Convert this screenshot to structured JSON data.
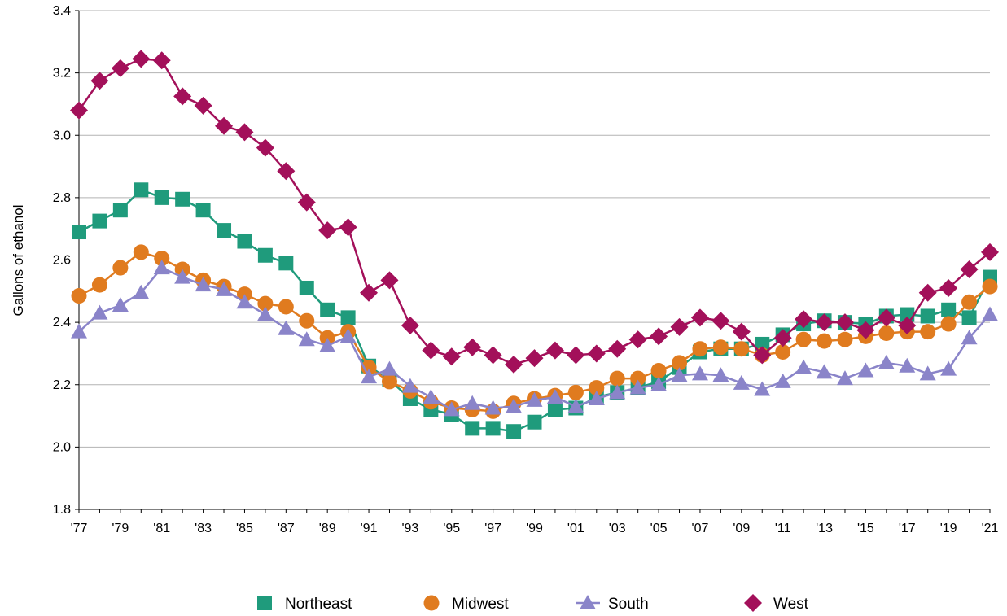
{
  "chart_data": {
    "type": "line",
    "title": "",
    "xlabel": "",
    "ylabel": "Gallons of ethanol",
    "ylim": [
      1.8,
      3.4
    ],
    "yticks": [
      "1.8",
      "2.0",
      "2.2",
      "2.4",
      "2.6",
      "2.8",
      "3.0",
      "3.2",
      "3.4"
    ],
    "xlim": [
      1977,
      2021
    ],
    "xticks": [
      "'77",
      "'79",
      "'81",
      "'83",
      "'85",
      "'87",
      "'89",
      "'91",
      "'93",
      "'95",
      "'97",
      "'99",
      "'01",
      "'03",
      "'05",
      "'07",
      "'09",
      "'11",
      "'13",
      "'15",
      "'17",
      "'19",
      "'21"
    ],
    "grid": "horizontal",
    "legend_position": "bottom",
    "x": [
      1977,
      1978,
      1979,
      1980,
      1981,
      1982,
      1983,
      1984,
      1985,
      1986,
      1987,
      1988,
      1989,
      1990,
      1991,
      1992,
      1993,
      1994,
      1995,
      1996,
      1997,
      1998,
      1999,
      2000,
      2001,
      2002,
      2003,
      2004,
      2005,
      2006,
      2007,
      2008,
      2009,
      2010,
      2011,
      2012,
      2013,
      2014,
      2015,
      2016,
      2017,
      2018,
      2019,
      2020,
      2021
    ],
    "series": [
      {
        "name": "Northeast",
        "color": "#1f9b7c",
        "marker": "square",
        "values": [
          2.69,
          2.725,
          2.76,
          2.825,
          2.8,
          2.795,
          2.76,
          2.695,
          2.66,
          2.615,
          2.59,
          2.51,
          2.44,
          2.415,
          2.26,
          2.215,
          2.155,
          2.12,
          2.105,
          2.06,
          2.06,
          2.05,
          2.08,
          2.12,
          2.125,
          2.16,
          2.175,
          2.19,
          2.21,
          2.255,
          2.305,
          2.315,
          2.315,
          2.33,
          2.36,
          2.395,
          2.405,
          2.4,
          2.395,
          2.42,
          2.425,
          2.42,
          2.44,
          2.415,
          2.545
        ]
      },
      {
        "name": "Midwest",
        "color": "#e07b1f",
        "marker": "circle",
        "values": [
          2.485,
          2.52,
          2.575,
          2.625,
          2.605,
          2.57,
          2.535,
          2.515,
          2.49,
          2.46,
          2.45,
          2.405,
          2.35,
          2.37,
          2.255,
          2.21,
          2.18,
          2.145,
          2.125,
          2.12,
          2.115,
          2.14,
          2.155,
          2.165,
          2.175,
          2.19,
          2.22,
          2.22,
          2.245,
          2.27,
          2.315,
          2.32,
          2.315,
          2.295,
          2.305,
          2.345,
          2.34,
          2.345,
          2.355,
          2.365,
          2.37,
          2.37,
          2.395,
          2.465,
          2.515
        ]
      },
      {
        "name": "South",
        "color": "#8a84c9",
        "marker": "triangle",
        "values": [
          2.37,
          2.43,
          2.455,
          2.495,
          2.575,
          2.545,
          2.52,
          2.505,
          2.465,
          2.425,
          2.38,
          2.345,
          2.325,
          2.355,
          2.225,
          2.25,
          2.195,
          2.16,
          2.12,
          2.14,
          2.125,
          2.13,
          2.15,
          2.16,
          2.13,
          2.155,
          2.175,
          2.19,
          2.2,
          2.23,
          2.235,
          2.23,
          2.205,
          2.185,
          2.21,
          2.255,
          2.24,
          2.22,
          2.245,
          2.27,
          2.26,
          2.235,
          2.25,
          2.35,
          2.425
        ]
      },
      {
        "name": "West",
        "color": "#a3105a",
        "marker": "diamond",
        "values": [
          3.08,
          3.175,
          3.215,
          3.245,
          3.24,
          3.125,
          3.095,
          3.03,
          3.01,
          2.96,
          2.885,
          2.785,
          2.695,
          2.705,
          2.495,
          2.535,
          2.39,
          2.31,
          2.29,
          2.32,
          2.295,
          2.265,
          2.285,
          2.31,
          2.295,
          2.3,
          2.315,
          2.345,
          2.355,
          2.385,
          2.415,
          2.405,
          2.37,
          2.295,
          2.35,
          2.41,
          2.4,
          2.4,
          2.375,
          2.415,
          2.39,
          2.495,
          2.51,
          2.57,
          2.625
        ]
      }
    ]
  }
}
